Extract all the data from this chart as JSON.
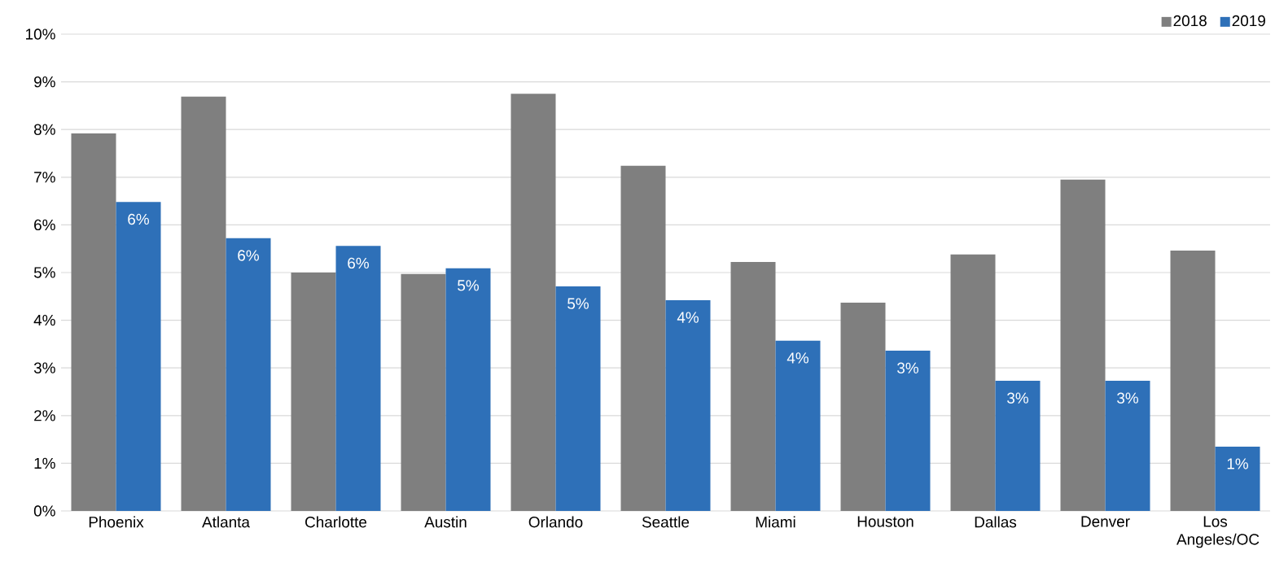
{
  "chart_data": {
    "type": "bar",
    "categories": [
      "Phoenix",
      "Atlanta",
      "Charlotte",
      "Austin",
      "Orlando",
      "Seattle",
      "Miami",
      "Houston",
      "Dallas",
      "Denver",
      "Los Angeles/OC"
    ],
    "series": [
      {
        "name": "2018",
        "color": "#7f7f7f",
        "values": [
          7.92,
          8.69,
          5.0,
          4.97,
          8.75,
          7.24,
          5.22,
          4.37,
          5.38,
          6.95,
          5.46
        ]
      },
      {
        "name": "2019",
        "color": "#2e70b8",
        "values": [
          6.48,
          5.72,
          5.56,
          5.09,
          4.71,
          4.42,
          3.57,
          3.36,
          2.73,
          2.73,
          1.35
        ],
        "value_labels": [
          "6%",
          "6%",
          "6%",
          "5%",
          "5%",
          "4%",
          "4%",
          "3%",
          "3%",
          "3%",
          "1%"
        ]
      }
    ],
    "ylim": [
      0,
      10
    ],
    "yticks": [
      {
        "value": 0,
        "label": "0%"
      },
      {
        "value": 1,
        "label": "1%"
      },
      {
        "value": 2,
        "label": "2%"
      },
      {
        "value": 3,
        "label": "3%"
      },
      {
        "value": 4,
        "label": "4%"
      },
      {
        "value": 5,
        "label": "5%"
      },
      {
        "value": 6,
        "label": "6%"
      },
      {
        "value": 7,
        "label": "7%"
      },
      {
        "value": 8,
        "label": "8%"
      },
      {
        "value": 9,
        "label": "9%"
      },
      {
        "value": 10,
        "label": "10%"
      }
    ],
    "grid": "y",
    "legend": "top right"
  }
}
